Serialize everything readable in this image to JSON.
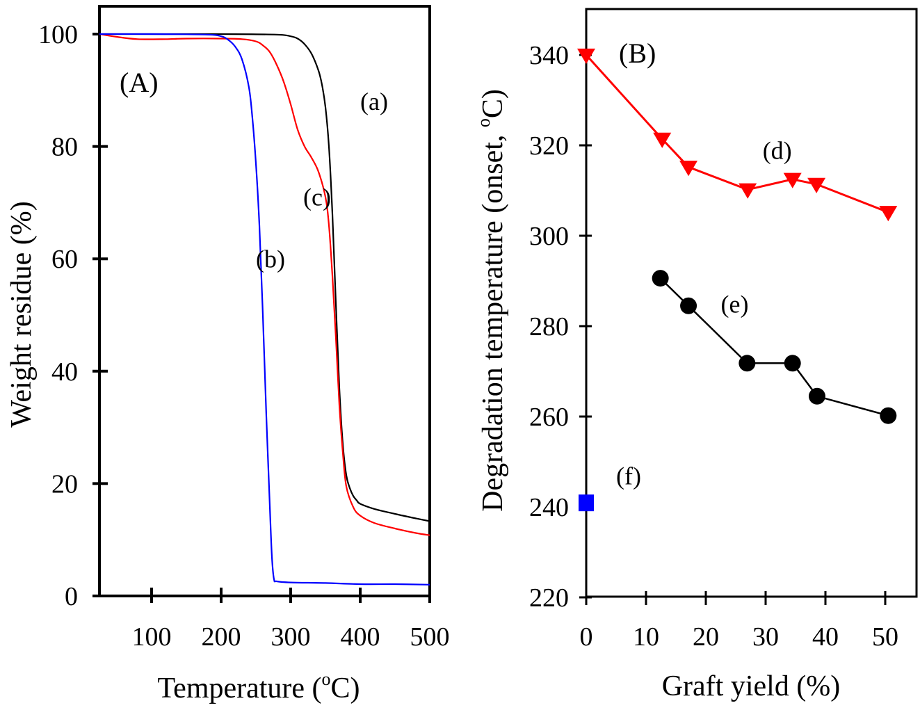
{
  "chart_data": [
    {
      "panel": "A",
      "type": "line",
      "panel_label": "(A)",
      "xlabel": "Temperature (",
      "xlabel_degree": "o",
      "xlabel_suffix": "C)",
      "ylabel": "Weight residue (%)",
      "xlim": [
        25,
        500
      ],
      "ylim": [
        0,
        100
      ],
      "xticks": [
        100,
        200,
        300,
        400,
        500
      ],
      "yticks": [
        0,
        20,
        40,
        60,
        80,
        100
      ],
      "grid": false,
      "series": [
        {
          "name": "(a)",
          "color": "#000000",
          "x": [
            25,
            100,
            200,
            280,
            300,
            310,
            320,
            330,
            340,
            345,
            350,
            355,
            360,
            365,
            370,
            375,
            380,
            385,
            390,
            395,
            400,
            420,
            450,
            480,
            500
          ],
          "y": [
            100,
            100,
            100,
            99.9,
            99.6,
            99.2,
            98.2,
            96.5,
            93.5,
            91,
            87,
            80,
            68,
            52,
            37,
            27,
            21.5,
            19.2,
            17.8,
            17,
            16.4,
            15.5,
            14.6,
            13.8,
            13.3
          ]
        },
        {
          "name": "(b)",
          "color": "#0000ff",
          "x": [
            25,
            100,
            180,
            200,
            210,
            220,
            230,
            240,
            245,
            250,
            255,
            260,
            265,
            270,
            273,
            276,
            280,
            300,
            350,
            400,
            450,
            500
          ],
          "y": [
            100,
            100,
            99.9,
            99.6,
            99.0,
            97.8,
            95.5,
            90.5,
            85,
            77,
            66,
            50,
            32,
            16,
            7,
            3,
            2.6,
            2.4,
            2.3,
            2.1,
            2.1,
            2.0
          ]
        },
        {
          "name": "(c)",
          "color": "#ff0000",
          "x": [
            25,
            50,
            80,
            120,
            150,
            200,
            230,
            250,
            260,
            270,
            280,
            290,
            300,
            310,
            320,
            330,
            340,
            350,
            355,
            360,
            365,
            370,
            375,
            380,
            390,
            400,
            420,
            450,
            480,
            500
          ],
          "y": [
            100,
            99.5,
            99.1,
            99.1,
            99.2,
            99.2,
            99.1,
            98.7,
            98.0,
            96.8,
            94.5,
            91.5,
            87.5,
            83,
            80,
            78,
            75.5,
            71,
            66,
            57,
            46,
            34,
            25.5,
            19.5,
            15.8,
            14.3,
            13,
            12,
            11.2,
            10.8
          ]
        }
      ],
      "annotations": [
        {
          "text": "(a)",
          "x": 400,
          "y": 86.5
        },
        {
          "text": "(b)",
          "x": 250,
          "y": 58.5
        },
        {
          "text": "(c)",
          "x": 318,
          "y": 69.5
        }
      ]
    },
    {
      "panel": "B",
      "type": "scatter",
      "panel_label": "(B)",
      "xlabel": "Graft yield (%)",
      "ylabel": "Degradation temperature (onset, ",
      "ylabel_degree": "o",
      "ylabel_suffix": "C)",
      "xlim": [
        0,
        55
      ],
      "ylim": [
        220,
        350
      ],
      "xticks": [
        0,
        10,
        20,
        30,
        40,
        50
      ],
      "yticks": [
        220,
        240,
        260,
        280,
        300,
        320,
        340
      ],
      "grid": false,
      "series": [
        {
          "name": "(d)",
          "color": "#ff0000",
          "marker": "triangle-down",
          "x": [
            0,
            12.7,
            17.1,
            27.0,
            34.5,
            38.5,
            50.5
          ],
          "y": [
            340,
            321.4,
            315.2,
            310.2,
            312.5,
            311.4,
            305.2
          ]
        },
        {
          "name": "(e)",
          "color": "#000000",
          "marker": "circle",
          "x": [
            12.4,
            17.1,
            26.9,
            34.5,
            38.6,
            50.5
          ],
          "y": [
            290.6,
            284.5,
            271.8,
            271.8,
            264.5,
            260.2
          ]
        },
        {
          "name": "(f)",
          "color": "#0000ff",
          "marker": "square",
          "x": [
            0
          ],
          "y": [
            240.9
          ]
        }
      ],
      "annotations": [
        {
          "text": "(d)",
          "x": 29.5,
          "y": 317
        },
        {
          "text": "(e)",
          "x": 22.5,
          "y": 283
        },
        {
          "text": "(f)",
          "x": 5,
          "y": 245
        }
      ]
    }
  ]
}
